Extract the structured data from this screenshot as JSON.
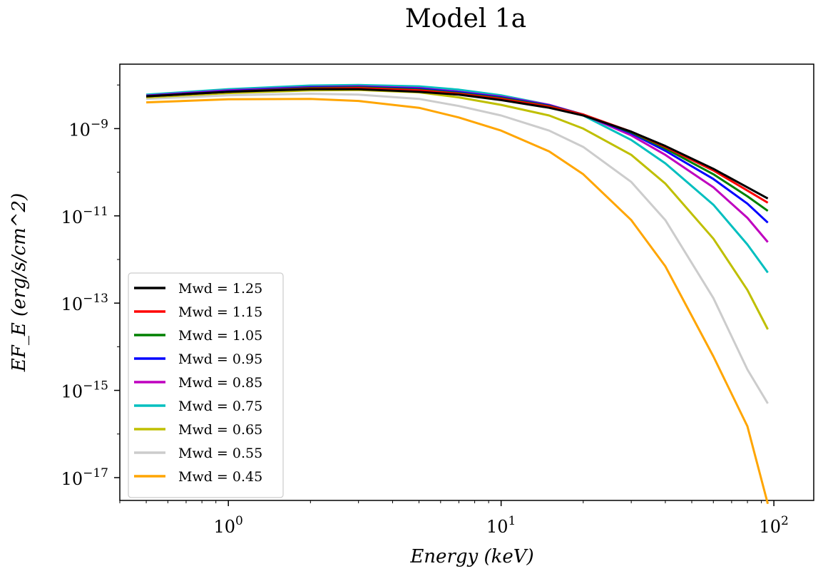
{
  "chart_data": {
    "type": "line",
    "title": "Model 1a",
    "xlabel": "Energy (keV)",
    "ylabel": "EF_E (erg/s/cm^2)",
    "x_scale": "log",
    "y_scale": "log",
    "xlim": [
      0.4,
      140
    ],
    "ylim": [
      3e-18,
      3e-08
    ],
    "x_ticks": [
      {
        "value": 1,
        "base": "10",
        "exp": "0"
      },
      {
        "value": 10,
        "base": "10",
        "exp": "1"
      },
      {
        "value": 100,
        "base": "10",
        "exp": "2"
      }
    ],
    "y_ticks": [
      {
        "value": 1e-09,
        "base": "10",
        "exp": "−9"
      },
      {
        "value": 1e-11,
        "base": "10",
        "exp": "−11"
      },
      {
        "value": 1e-13,
        "base": "10",
        "exp": "−13"
      },
      {
        "value": 1e-15,
        "base": "10",
        "exp": "−15"
      },
      {
        "value": 1e-17,
        "base": "10",
        "exp": "−17"
      }
    ],
    "grid": false,
    "legend_position": "lower-left",
    "x": [
      0.5,
      1,
      2,
      3,
      5,
      7,
      10,
      15,
      20,
      30,
      40,
      60,
      80,
      95
    ],
    "series": [
      {
        "name": "Mwd = 1.25",
        "color": "#000000",
        "values": [
          5.5e-09,
          7e-09,
          8e-09,
          8e-09,
          7e-09,
          6e-09,
          4.5e-09,
          3e-09,
          2e-09,
          8.5e-10,
          4e-10,
          1.2e-10,
          4.5e-11,
          2.5e-11
        ]
      },
      {
        "name": "Mwd = 1.15",
        "color": "#ff0000",
        "values": [
          5.5e-09,
          7e-09,
          8.3e-09,
          8.5e-09,
          7.5e-09,
          6.3e-09,
          4.8e-09,
          3.2e-09,
          2.1e-09,
          8.5e-10,
          3.8e-10,
          1.1e-10,
          3.8e-11,
          2e-11
        ]
      },
      {
        "name": "Mwd = 1.05",
        "color": "#008000",
        "values": [
          5.5e-09,
          7e-09,
          8.5e-09,
          8.8e-09,
          7.8e-09,
          6.5e-09,
          5e-09,
          3.3e-09,
          2.1e-09,
          8.2e-10,
          3.5e-10,
          9e-11,
          2.8e-11,
          1.3e-11
        ]
      },
      {
        "name": "Mwd = 0.95",
        "color": "#0000ff",
        "values": [
          5.6e-09,
          7.2e-09,
          8.8e-09,
          9e-09,
          8.2e-09,
          6.8e-09,
          5.2e-09,
          3.4e-09,
          2.1e-09,
          7.8e-10,
          3.1e-10,
          7e-11,
          1.9e-11,
          7e-12
        ]
      },
      {
        "name": "Mwd = 0.85",
        "color": "#bf00bf",
        "values": [
          5.7e-09,
          7.5e-09,
          9e-09,
          9.3e-09,
          8.5e-09,
          7e-09,
          5.4e-09,
          3.5e-09,
          2.1e-09,
          7e-10,
          2.5e-10,
          4.5e-11,
          9e-12,
          2.5e-12
        ]
      },
      {
        "name": "Mwd = 0.75",
        "color": "#00bfbf",
        "values": [
          6e-09,
          8e-09,
          9.7e-09,
          1e-08,
          9.3e-09,
          7.8e-09,
          5.8e-09,
          3.5e-09,
          2e-09,
          5.5e-10,
          1.6e-10,
          1.8e-11,
          2.2e-12,
          5e-13
        ]
      },
      {
        "name": "Mwd = 0.65",
        "color": "#bfbf00",
        "values": [
          5.2e-09,
          6.5e-09,
          7.5e-09,
          7.7e-09,
          6.8e-09,
          5.2e-09,
          3.5e-09,
          2e-09,
          1e-09,
          2.5e-10,
          5.5e-11,
          3e-12,
          2e-13,
          2.5e-14
        ]
      },
      {
        "name": "Mwd = 0.55",
        "color": "#cccccc",
        "values": [
          4.8e-09,
          5.8e-09,
          6.3e-09,
          6e-09,
          4.8e-09,
          3.3e-09,
          2e-09,
          9e-10,
          3.8e-10,
          6e-11,
          8e-12,
          1.3e-13,
          3e-15,
          5e-16
        ]
      },
      {
        "name": "Mwd = 0.45",
        "color": "#ffa500",
        "values": [
          4e-09,
          4.7e-09,
          4.8e-09,
          4.3e-09,
          3e-09,
          1.8e-09,
          9e-10,
          3e-10,
          9e-11,
          8e-12,
          7e-13,
          6e-15,
          1.5e-16,
          2.5e-18
        ]
      }
    ]
  }
}
